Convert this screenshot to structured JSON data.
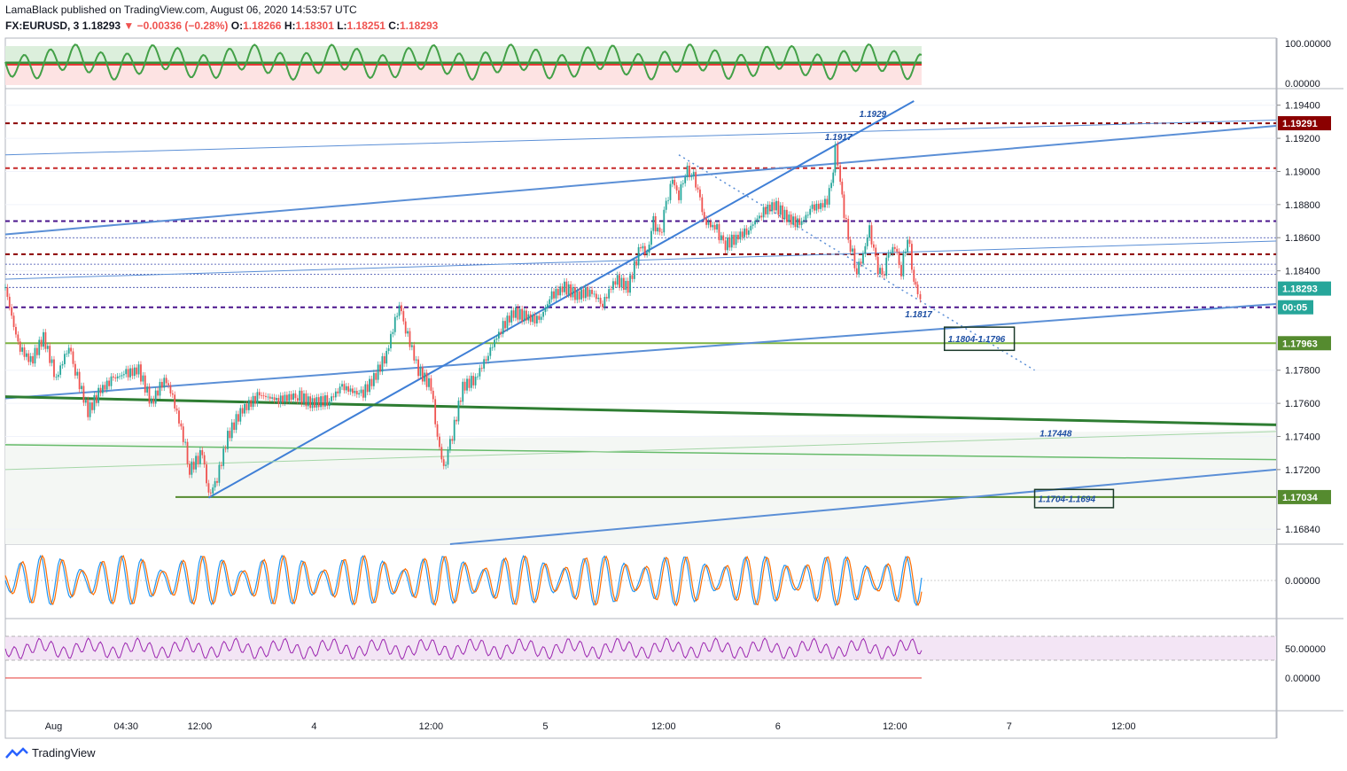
{
  "header": {
    "publisher_line": "LamaBlack published on TradingView.com, August 06, 2020 14:53:57 UTC",
    "symbol": "FX:EURUSD, 3",
    "last": "1.18293",
    "change": "▼ −0.00336 (−0.28%)",
    "open_label": "O:",
    "open": "1.18266",
    "high_label": "H:",
    "high": "1.18301",
    "low_label": "L:",
    "low": "1.18251",
    "close_label": "C:",
    "close": "1.18293"
  },
  "footer": {
    "brand": "TradingView"
  },
  "colors": {
    "up": "#26a69a",
    "down": "#ef5350",
    "blue_line": "#5b8fd6",
    "maroon": "#8b0000",
    "purple": "#4a148c",
    "green": "#2e7d32",
    "osc_green": "#43a047",
    "rsi": "#9c27b0"
  },
  "chart_data": {
    "type": "candlestick",
    "xaxis_ticks": [
      "Aug",
      "04:30",
      "12:00",
      "4",
      "12:00",
      "5",
      "12:00",
      "6",
      "12:00",
      "7",
      "12:00"
    ],
    "price_axis": {
      "range": [
        1.1675,
        1.195
      ],
      "ticks": [
        "1.19400",
        "1.19200",
        "1.19000",
        "1.18800",
        "1.18600",
        "1.18400",
        "1.17800",
        "1.17600",
        "1.17400",
        "1.17200",
        "1.16840"
      ]
    },
    "price_badges": [
      {
        "label": "1.19291",
        "value": 1.19291,
        "color": "#8b0000"
      },
      {
        "label": "1.18293",
        "value": 1.18293,
        "color": "#26a69a"
      },
      {
        "label": "00:05",
        "value": 1.1818,
        "color": "#26a69a"
      },
      {
        "label": "1.17963",
        "value": 1.17963,
        "color": "#558b2f"
      },
      {
        "label": "1.17034",
        "value": 1.17034,
        "color": "#558b2f"
      }
    ],
    "partial_tick": "1",
    "horizontal_levels": [
      {
        "value": 1.19291,
        "style": "dashed",
        "color": "#8b0000"
      },
      {
        "value": 1.1902,
        "style": "dashed",
        "color": "#c62828"
      },
      {
        "value": 1.187,
        "style": "dashed",
        "color": "#4a148c"
      },
      {
        "value": 1.185,
        "style": "dashed",
        "color": "#8b0000"
      },
      {
        "value": 1.1818,
        "style": "dashed",
        "color": "#4a148c"
      },
      {
        "value": 1.17963,
        "style": "solid",
        "color": "#7cb342"
      },
      {
        "value": 1.17034,
        "style": "solid",
        "color": "#558b2f"
      }
    ],
    "annotations": [
      {
        "text": "1.1929",
        "x": 0.672,
        "price": 1.1933
      },
      {
        "text": "1.1917",
        "x": 0.645,
        "price": 1.1919
      },
      {
        "text": "1.1817",
        "x": 0.708,
        "price": 1.1812
      },
      {
        "text": "1.17448",
        "x": 0.814,
        "price": 1.174
      }
    ],
    "boxes": [
      {
        "text": "1.1804-1.1796",
        "x0": 0.739,
        "x1": 0.794,
        "p0": 1.1806,
        "p1": 1.1792
      },
      {
        "text": "1.1704-1.1694",
        "x0": 0.81,
        "x1": 0.872,
        "p0": 1.1708,
        "p1": 1.1697
      }
    ],
    "series_path": [
      [
        0.0,
        1.183
      ],
      [
        0.01,
        1.1795
      ],
      [
        0.02,
        1.1785
      ],
      [
        0.03,
        1.18
      ],
      [
        0.04,
        1.1775
      ],
      [
        0.05,
        1.1795
      ],
      [
        0.055,
        1.178
      ],
      [
        0.065,
        1.1755
      ],
      [
        0.075,
        1.1768
      ],
      [
        0.085,
        1.1775
      ],
      [
        0.095,
        1.1778
      ],
      [
        0.105,
        1.178
      ],
      [
        0.115,
        1.176
      ],
      [
        0.125,
        1.1775
      ],
      [
        0.13,
        1.1768
      ],
      [
        0.14,
        1.174
      ],
      [
        0.145,
        1.172
      ],
      [
        0.155,
        1.173
      ],
      [
        0.16,
        1.1705
      ],
      [
        0.165,
        1.171
      ],
      [
        0.175,
        1.174
      ],
      [
        0.185,
        1.1755
      ],
      [
        0.2,
        1.1765
      ],
      [
        0.215,
        1.1762
      ],
      [
        0.23,
        1.1765
      ],
      [
        0.24,
        1.176
      ],
      [
        0.255,
        1.1762
      ],
      [
        0.265,
        1.177
      ],
      [
        0.28,
        1.1765
      ],
      [
        0.29,
        1.1775
      ],
      [
        0.3,
        1.179
      ],
      [
        0.31,
        1.182
      ],
      [
        0.315,
        1.1805
      ],
      [
        0.325,
        1.178
      ],
      [
        0.335,
        1.177
      ],
      [
        0.34,
        1.174
      ],
      [
        0.345,
        1.172
      ],
      [
        0.35,
        1.1735
      ],
      [
        0.36,
        1.177
      ],
      [
        0.37,
        1.1775
      ],
      [
        0.38,
        1.179
      ],
      [
        0.39,
        1.1805
      ],
      [
        0.4,
        1.1815
      ],
      [
        0.41,
        1.1812
      ],
      [
        0.42,
        1.181
      ],
      [
        0.43,
        1.1825
      ],
      [
        0.44,
        1.183
      ],
      [
        0.45,
        1.1825
      ],
      [
        0.46,
        1.1828
      ],
      [
        0.47,
        1.182
      ],
      [
        0.48,
        1.1835
      ],
      [
        0.49,
        1.183
      ],
      [
        0.5,
        1.1855
      ],
      [
        0.505,
        1.185
      ],
      [
        0.51,
        1.187
      ],
      [
        0.515,
        1.186
      ],
      [
        0.52,
        1.188
      ],
      [
        0.525,
        1.1895
      ],
      [
        0.53,
        1.1885
      ],
      [
        0.535,
        1.19
      ],
      [
        0.54,
        1.19
      ],
      [
        0.545,
        1.189
      ],
      [
        0.55,
        1.187
      ],
      [
        0.56,
        1.1865
      ],
      [
        0.565,
        1.1855
      ],
      [
        0.575,
        1.186
      ],
      [
        0.585,
        1.1865
      ],
      [
        0.595,
        1.1875
      ],
      [
        0.605,
        1.188
      ],
      [
        0.615,
        1.1872
      ],
      [
        0.625,
        1.1868
      ],
      [
        0.635,
        1.1878
      ],
      [
        0.645,
        1.188
      ],
      [
        0.65,
        1.189
      ],
      [
        0.653,
        1.1915
      ],
      [
        0.657,
        1.1895
      ],
      [
        0.66,
        1.1875
      ],
      [
        0.665,
        1.1855
      ],
      [
        0.67,
        1.184
      ],
      [
        0.675,
        1.185
      ],
      [
        0.68,
        1.1865
      ],
      [
        0.685,
        1.1845
      ],
      [
        0.69,
        1.1835
      ],
      [
        0.695,
        1.185
      ],
      [
        0.7,
        1.1855
      ],
      [
        0.705,
        1.184
      ],
      [
        0.71,
        1.1862
      ],
      [
        0.715,
        1.1835
      ],
      [
        0.718,
        1.1825
      ],
      [
        0.722,
        1.1822
      ]
    ],
    "osc_path": [],
    "rsi_levels": [
      "50.00000",
      "0.00000"
    ],
    "osc_levels": [
      "100.00000",
      "0.00000"
    ],
    "macd_level": "0.00000"
  }
}
